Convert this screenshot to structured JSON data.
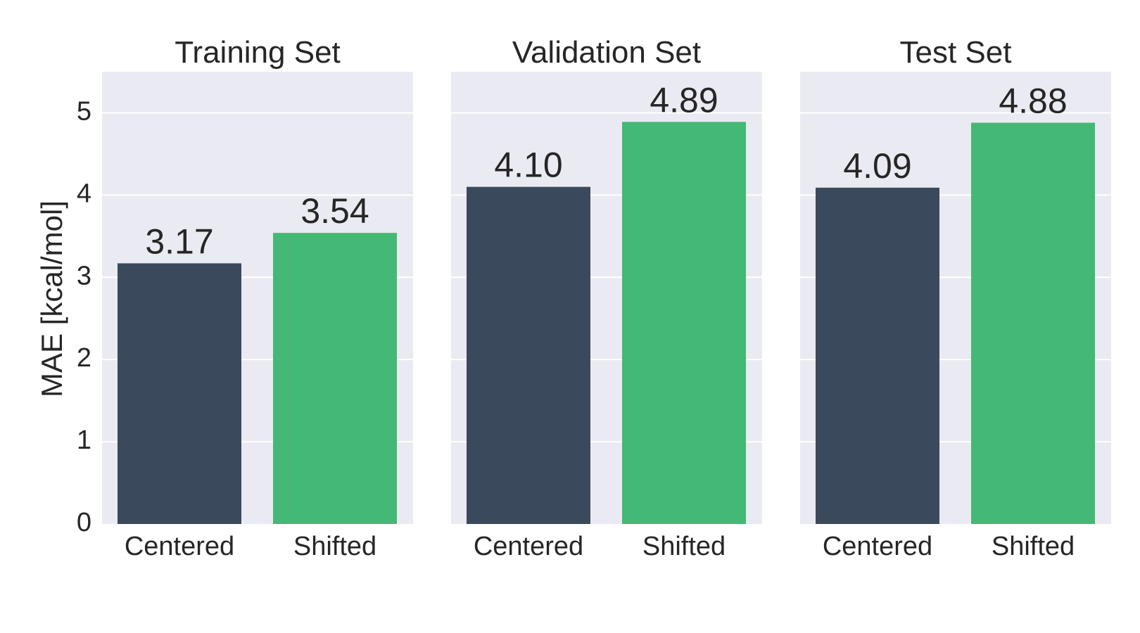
{
  "chart_data": {
    "type": "bar",
    "ylabel": "MAE [kcal/mol]",
    "ylim": [
      0,
      5.5
    ],
    "yticks": [
      "0",
      "1",
      "2",
      "3",
      "4",
      "5"
    ],
    "grid": true,
    "categories": [
      "Centered",
      "Shifted"
    ],
    "colors": {
      "Centered": "#3a4a5c",
      "Shifted": "#44b875",
      "panel_bg": "#eaeaf2",
      "grid": "#ffffff"
    },
    "panels": [
      {
        "title": "Training Set",
        "values": [
          3.17,
          3.54
        ],
        "labels": [
          "3.17",
          "3.54"
        ]
      },
      {
        "title": "Validation Set",
        "values": [
          4.1,
          4.89
        ],
        "labels": [
          "4.10",
          "4.89"
        ]
      },
      {
        "title": "Test Set",
        "values": [
          4.09,
          4.88
        ],
        "labels": [
          "4.09",
          "4.88"
        ]
      }
    ]
  }
}
